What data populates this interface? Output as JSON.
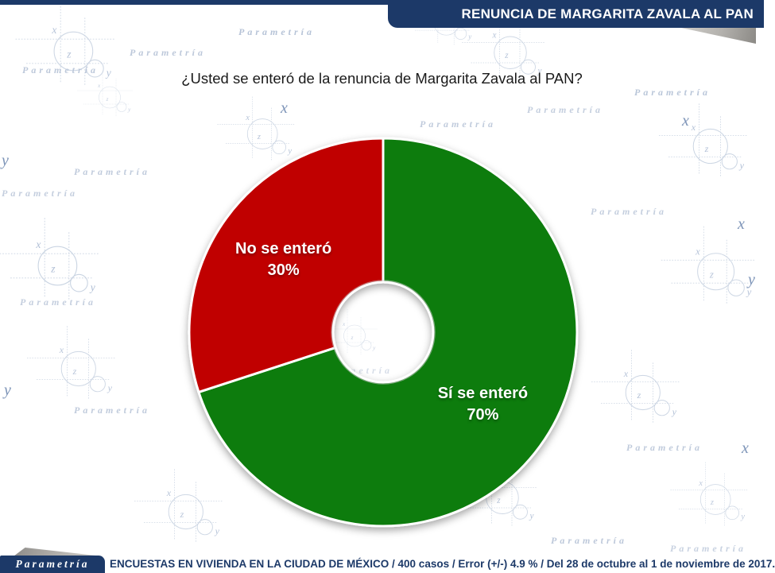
{
  "header": {
    "title": "RENUNCIA DE MARGARITA ZAVALA AL PAN",
    "bar_color": "#1C3968"
  },
  "question": {
    "text": "¿Usted se enteró de la renuncia de Margarita Zavala al PAN?"
  },
  "chart_data": {
    "type": "pie",
    "subtype": "donut",
    "title": "¿Usted se enteró de la renuncia de Margarita Zavala al PAN?",
    "start_angle_deg": 0,
    "direction": "clockwise",
    "hole_ratio": 0.26,
    "separator_color": "#FFFFFF",
    "label_color": "#FFFFFF",
    "slices": [
      {
        "label": "Sí se enteró",
        "value": 70,
        "display_value": "70%",
        "color": "#0E7C0E"
      },
      {
        "label": "No se enteró",
        "value": 30,
        "display_value": "30%",
        "color": "#C00000"
      }
    ]
  },
  "footer": {
    "logo_text": "Parametría",
    "text": "ENCUESTAS EN VIVIENDA EN LA CIUDAD DE MÉXICO / 400 casos / Error (+/-) 4.9 % / Del 28 de octubre al 1 de noviembre de 2017.",
    "text_color": "#1C3968"
  },
  "watermark": {
    "word": "Parametría",
    "letters": {
      "x": "x",
      "y": "y",
      "z": "z"
    }
  }
}
